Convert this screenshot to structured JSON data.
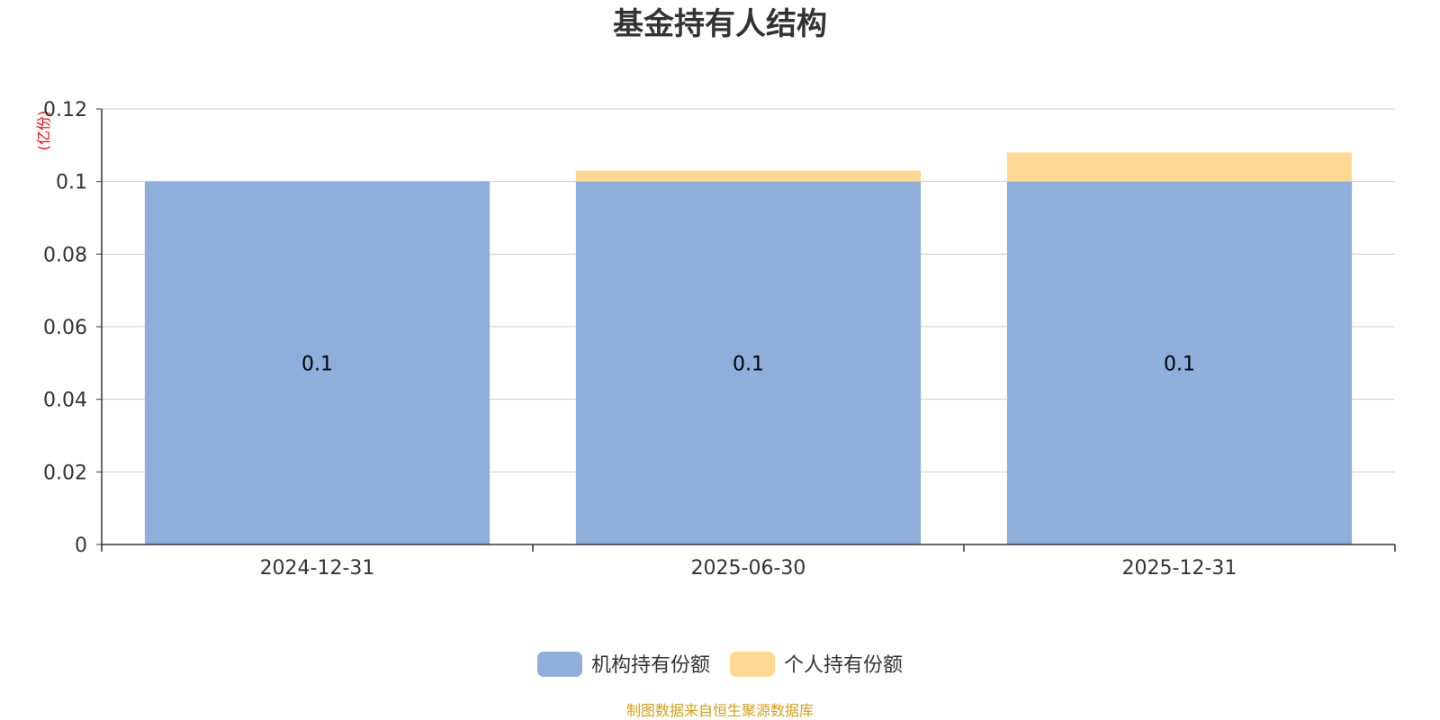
{
  "chart_data": {
    "type": "bar",
    "stacked": true,
    "title": "基金持有人结构",
    "y_unit_label": "(亿份)",
    "categories": [
      "2024-12-31",
      "2025-06-30",
      "2025-12-31"
    ],
    "series": [
      {
        "name": "机构持有份额",
        "color": "#8eaedb",
        "values": [
          0.1,
          0.1,
          0.1
        ],
        "data_labels": [
          "0.1",
          "0.1",
          "0.1"
        ]
      },
      {
        "name": "个人持有份额",
        "color": "#ffd994",
        "values": [
          0.0,
          0.003,
          0.008
        ],
        "data_labels": [
          "",
          "",
          ""
        ]
      }
    ],
    "ylim": [
      0,
      0.12
    ],
    "y_ticks": [
      0,
      0.02,
      0.04,
      0.06,
      0.08,
      0.1,
      0.12
    ],
    "y_tick_labels": [
      "0",
      "0.02",
      "0.04",
      "0.06",
      "0.08",
      "0.1",
      "0.12"
    ],
    "grid": true,
    "legend_position": "bottom-center",
    "colors": {
      "title": "#333333",
      "unit": "#ff0000",
      "grid": "#cccccc",
      "axis": "#333333",
      "source": "#d4a017"
    }
  },
  "footer": {
    "source": "制图数据来自恒生聚源数据库"
  }
}
